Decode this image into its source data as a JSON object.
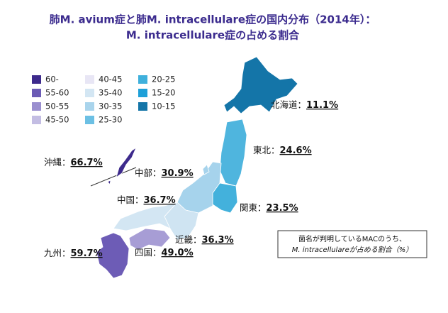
{
  "title": [
    "肺M. avium症と肺M. intracellulare症の国内分布（2014年）：",
    "M. intracellulare症の占める割合"
  ],
  "legend": [
    {
      "label": "60-",
      "color": "#3d2a8c"
    },
    {
      "label": "55-60",
      "color": "#6b5bb5"
    },
    {
      "label": "50-55",
      "color": "#9a8fcf"
    },
    {
      "label": "45-50",
      "color": "#c3bde3"
    },
    {
      "label": "40-45",
      "color": "#e8e6f5"
    },
    {
      "label": "35-40",
      "color": "#d3e6f3"
    },
    {
      "label": "30-35",
      "color": "#a9d4ec"
    },
    {
      "label": "25-30",
      "color": "#6cc0e4"
    },
    {
      "label": "20-25",
      "color": "#3fb0dc"
    },
    {
      "label": "15-20",
      "color": "#1ea0d8"
    },
    {
      "label": "10-15",
      "color": "#1475a8"
    }
  ],
  "regions": [
    {
      "name": "北海道：",
      "value_label": "11.1%",
      "color": "#1475a8"
    },
    {
      "name": "東北：",
      "value_label": "24.6%",
      "color": "#4fb5de"
    },
    {
      "name": "関東：",
      "value_label": "23.5%",
      "color": "#43b1dc"
    },
    {
      "name": "中部：",
      "value_label": "30.9%",
      "color": "#a6d3ec"
    },
    {
      "name": "近畿：",
      "value_label": "36.3%",
      "color": "#cfe4f2"
    },
    {
      "name": "中国：",
      "value_label": "36.7%",
      "color": "#d3e6f3"
    },
    {
      "name": "四国：",
      "value_label": "49.0%",
      "color": "#a79dd5"
    },
    {
      "name": "九州：",
      "value_label": "59.7%",
      "color": "#6d5cb6"
    },
    {
      "name": "沖縄：",
      "value_label": "66.7%",
      "color": "#3d2a8c"
    }
  ],
  "note": [
    "菌名が判明しているMACのうち、",
    "M. intracellulareが占める割合（%）"
  ]
}
